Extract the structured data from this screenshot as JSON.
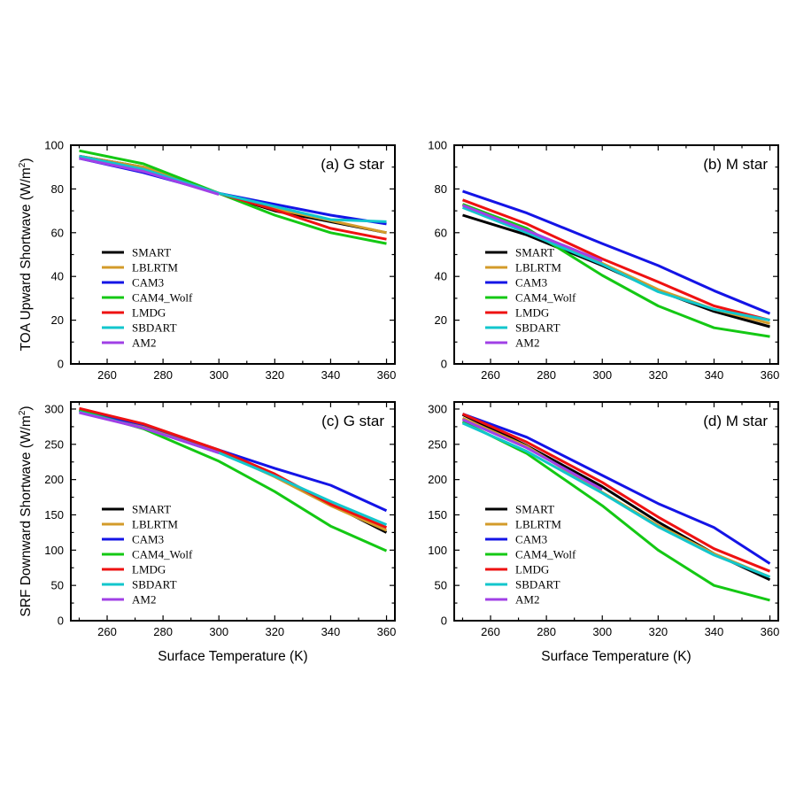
{
  "chart_data": {
    "type": "line",
    "series_names": [
      "SMART",
      "LBLRTM",
      "CAM3",
      "CAM4_Wolf",
      "LMDG",
      "SBDART",
      "AM2"
    ],
    "series_colors": {
      "SMART": "#000000",
      "LBLRTM": "#d39b2a",
      "CAM3": "#1414e6",
      "CAM4_Wolf": "#14c814",
      "LMDG": "#ee1111",
      "SBDART": "#12c6cc",
      "AM2": "#a040e6"
    },
    "xlabel": "Surface Temperature (K)",
    "x_ticks": [
      260,
      280,
      300,
      320,
      340,
      360
    ],
    "panels": [
      {
        "id": "a",
        "title": "(a) G star",
        "ylabel_main": "TOA Upward Shortwave (W/m",
        "ylabel_sup": "2",
        "ylabel_end": ")",
        "xlim": [
          247,
          363
        ],
        "ylim": [
          0,
          100
        ],
        "y_ticks": [
          0,
          20,
          40,
          60,
          80,
          100
        ],
        "series": [
          {
            "name": "SMART",
            "x": [
              250,
              273,
              300,
              320,
              340,
              360
            ],
            "values": [
              95,
              90,
              78,
              70,
              65,
              60
            ]
          },
          {
            "name": "LBLRTM",
            "x": [
              250,
              273,
              300,
              320,
              340,
              360
            ],
            "values": [
              95,
              90,
              78,
              71,
              65.5,
              60
            ]
          },
          {
            "name": "CAM3",
            "x": [
              250,
              273,
              300,
              320,
              340,
              360
            ],
            "values": [
              94,
              87.5,
              78,
              73,
              68,
              64
            ]
          },
          {
            "name": "CAM4_Wolf",
            "x": [
              250,
              273,
              300,
              320,
              340,
              360
            ],
            "values": [
              97.5,
              91.5,
              78,
              68,
              60,
              55
            ]
          },
          {
            "name": "LMDG",
            "x": [
              250,
              273,
              300,
              320,
              340,
              360
            ],
            "values": [
              95,
              89,
              78,
              70.5,
              62,
              57
            ]
          },
          {
            "name": "SBDART",
            "x": [
              250,
              273,
              300,
              320,
              340,
              360
            ],
            "values": [
              95,
              89,
              78,
              72,
              66,
              65
            ]
          },
          {
            "name": "AM2",
            "x": [
              250,
              273,
              300
            ],
            "values": [
              94,
              88,
              77.5
            ]
          }
        ]
      },
      {
        "id": "b",
        "title": "(b) M star",
        "xlim": [
          247,
          363
        ],
        "ylim": [
          0,
          100
        ],
        "y_ticks": [
          0,
          20,
          40,
          60,
          80,
          100
        ],
        "series": [
          {
            "name": "SMART",
            "x": [
              250,
              273,
              300,
              320,
              340,
              360
            ],
            "values": [
              68,
              59,
              45,
              33.5,
              24,
              17
            ]
          },
          {
            "name": "LBLRTM",
            "x": [
              250,
              273,
              300,
              320,
              340,
              360
            ],
            "values": [
              73,
              61,
              46,
              34,
              25,
              18.5
            ]
          },
          {
            "name": "CAM3",
            "x": [
              250,
              273,
              300,
              320,
              340,
              360
            ],
            "values": [
              79,
              69,
              55,
              45,
              33.5,
              23
            ]
          },
          {
            "name": "CAM4_Wolf",
            "x": [
              250,
              273,
              300,
              320,
              340,
              360
            ],
            "values": [
              73,
              62,
              40.5,
              26.5,
              16.5,
              12.5
            ]
          },
          {
            "name": "LMDG",
            "x": [
              250,
              273,
              300,
              320,
              340,
              360
            ],
            "values": [
              75,
              64,
              48,
              37.5,
              26.5,
              20
            ]
          },
          {
            "name": "SBDART",
            "x": [
              250,
              273,
              300,
              320,
              340,
              360
            ],
            "values": [
              71.5,
              60,
              45.5,
              33,
              25,
              20
            ]
          },
          {
            "name": "AM2",
            "x": [
              250,
              273,
              300
            ],
            "values": [
              72.5,
              61,
              47
            ]
          }
        ]
      },
      {
        "id": "c",
        "title": "(c) G star",
        "ylabel_main": "SRF Downward Shortwave (W/m",
        "ylabel_sup": "2",
        "ylabel_end": ")",
        "xlim": [
          247,
          363
        ],
        "ylim": [
          0,
          310
        ],
        "y_ticks": [
          0,
          50,
          100,
          150,
          200,
          250,
          300
        ],
        "series": [
          {
            "name": "SMART",
            "x": [
              250,
              273,
              300,
              320,
              340,
              360
            ],
            "values": [
              299,
              277,
              240,
              205,
              165,
              125
            ]
          },
          {
            "name": "LBLRTM",
            "x": [
              250,
              273,
              300,
              320,
              340,
              360
            ],
            "values": [
              299,
              277,
              240,
              204,
              163,
              128
            ]
          },
          {
            "name": "CAM3",
            "x": [
              250,
              273,
              300,
              320,
              340,
              360
            ],
            "values": [
              298,
              278,
              242,
              216,
              192,
              156
            ]
          },
          {
            "name": "CAM4_Wolf",
            "x": [
              250,
              273,
              300,
              320,
              340,
              360
            ],
            "values": [
              298,
              272,
              226,
              183,
              134,
              99
            ]
          },
          {
            "name": "LMDG",
            "x": [
              250,
              273,
              300,
              320,
              340,
              360
            ],
            "values": [
              301,
              279,
              242,
              208,
              165,
              132
            ]
          },
          {
            "name": "SBDART",
            "x": [
              250,
              273,
              300,
              320,
              340,
              360
            ],
            "values": [
              296,
              273,
              238,
              205,
              169,
              136
            ]
          },
          {
            "name": "AM2",
            "x": [
              250,
              273,
              300
            ],
            "values": [
              295,
              273,
              238
            ]
          }
        ]
      },
      {
        "id": "d",
        "title": "(d) M star",
        "xlim": [
          247,
          363
        ],
        "ylim": [
          0,
          310
        ],
        "y_ticks": [
          0,
          50,
          100,
          150,
          200,
          250,
          300
        ],
        "series": [
          {
            "name": "SMART",
            "x": [
              250,
              273,
              300,
              320,
              340,
              360
            ],
            "values": [
              292,
              248,
              190,
              140,
              95,
              58
            ]
          },
          {
            "name": "LBLRTM",
            "x": [
              250,
              273,
              300,
              320,
              340,
              360
            ],
            "values": [
              287,
              247,
              182,
              135,
              95,
              62
            ]
          },
          {
            "name": "CAM3",
            "x": [
              250,
              273,
              300,
              320,
              340,
              360
            ],
            "values": [
              293,
              260,
              206,
              166,
              132,
              81
            ]
          },
          {
            "name": "CAM4_Wolf",
            "x": [
              250,
              273,
              300,
              320,
              340,
              360
            ],
            "values": [
              282,
              237,
              163,
              100,
              50,
              29
            ]
          },
          {
            "name": "LMDG",
            "x": [
              250,
              273,
              300,
              320,
              340,
              360
            ],
            "values": [
              293,
              253,
              196,
              147,
              102,
              70
            ]
          },
          {
            "name": "SBDART",
            "x": [
              250,
              273,
              300,
              320,
              340,
              360
            ],
            "values": [
              280,
              240,
              181,
              133,
              93,
              62
            ]
          },
          {
            "name": "AM2",
            "x": [
              250,
              273,
              300
            ],
            "values": [
              285,
              245,
              186
            ]
          }
        ]
      }
    ]
  }
}
